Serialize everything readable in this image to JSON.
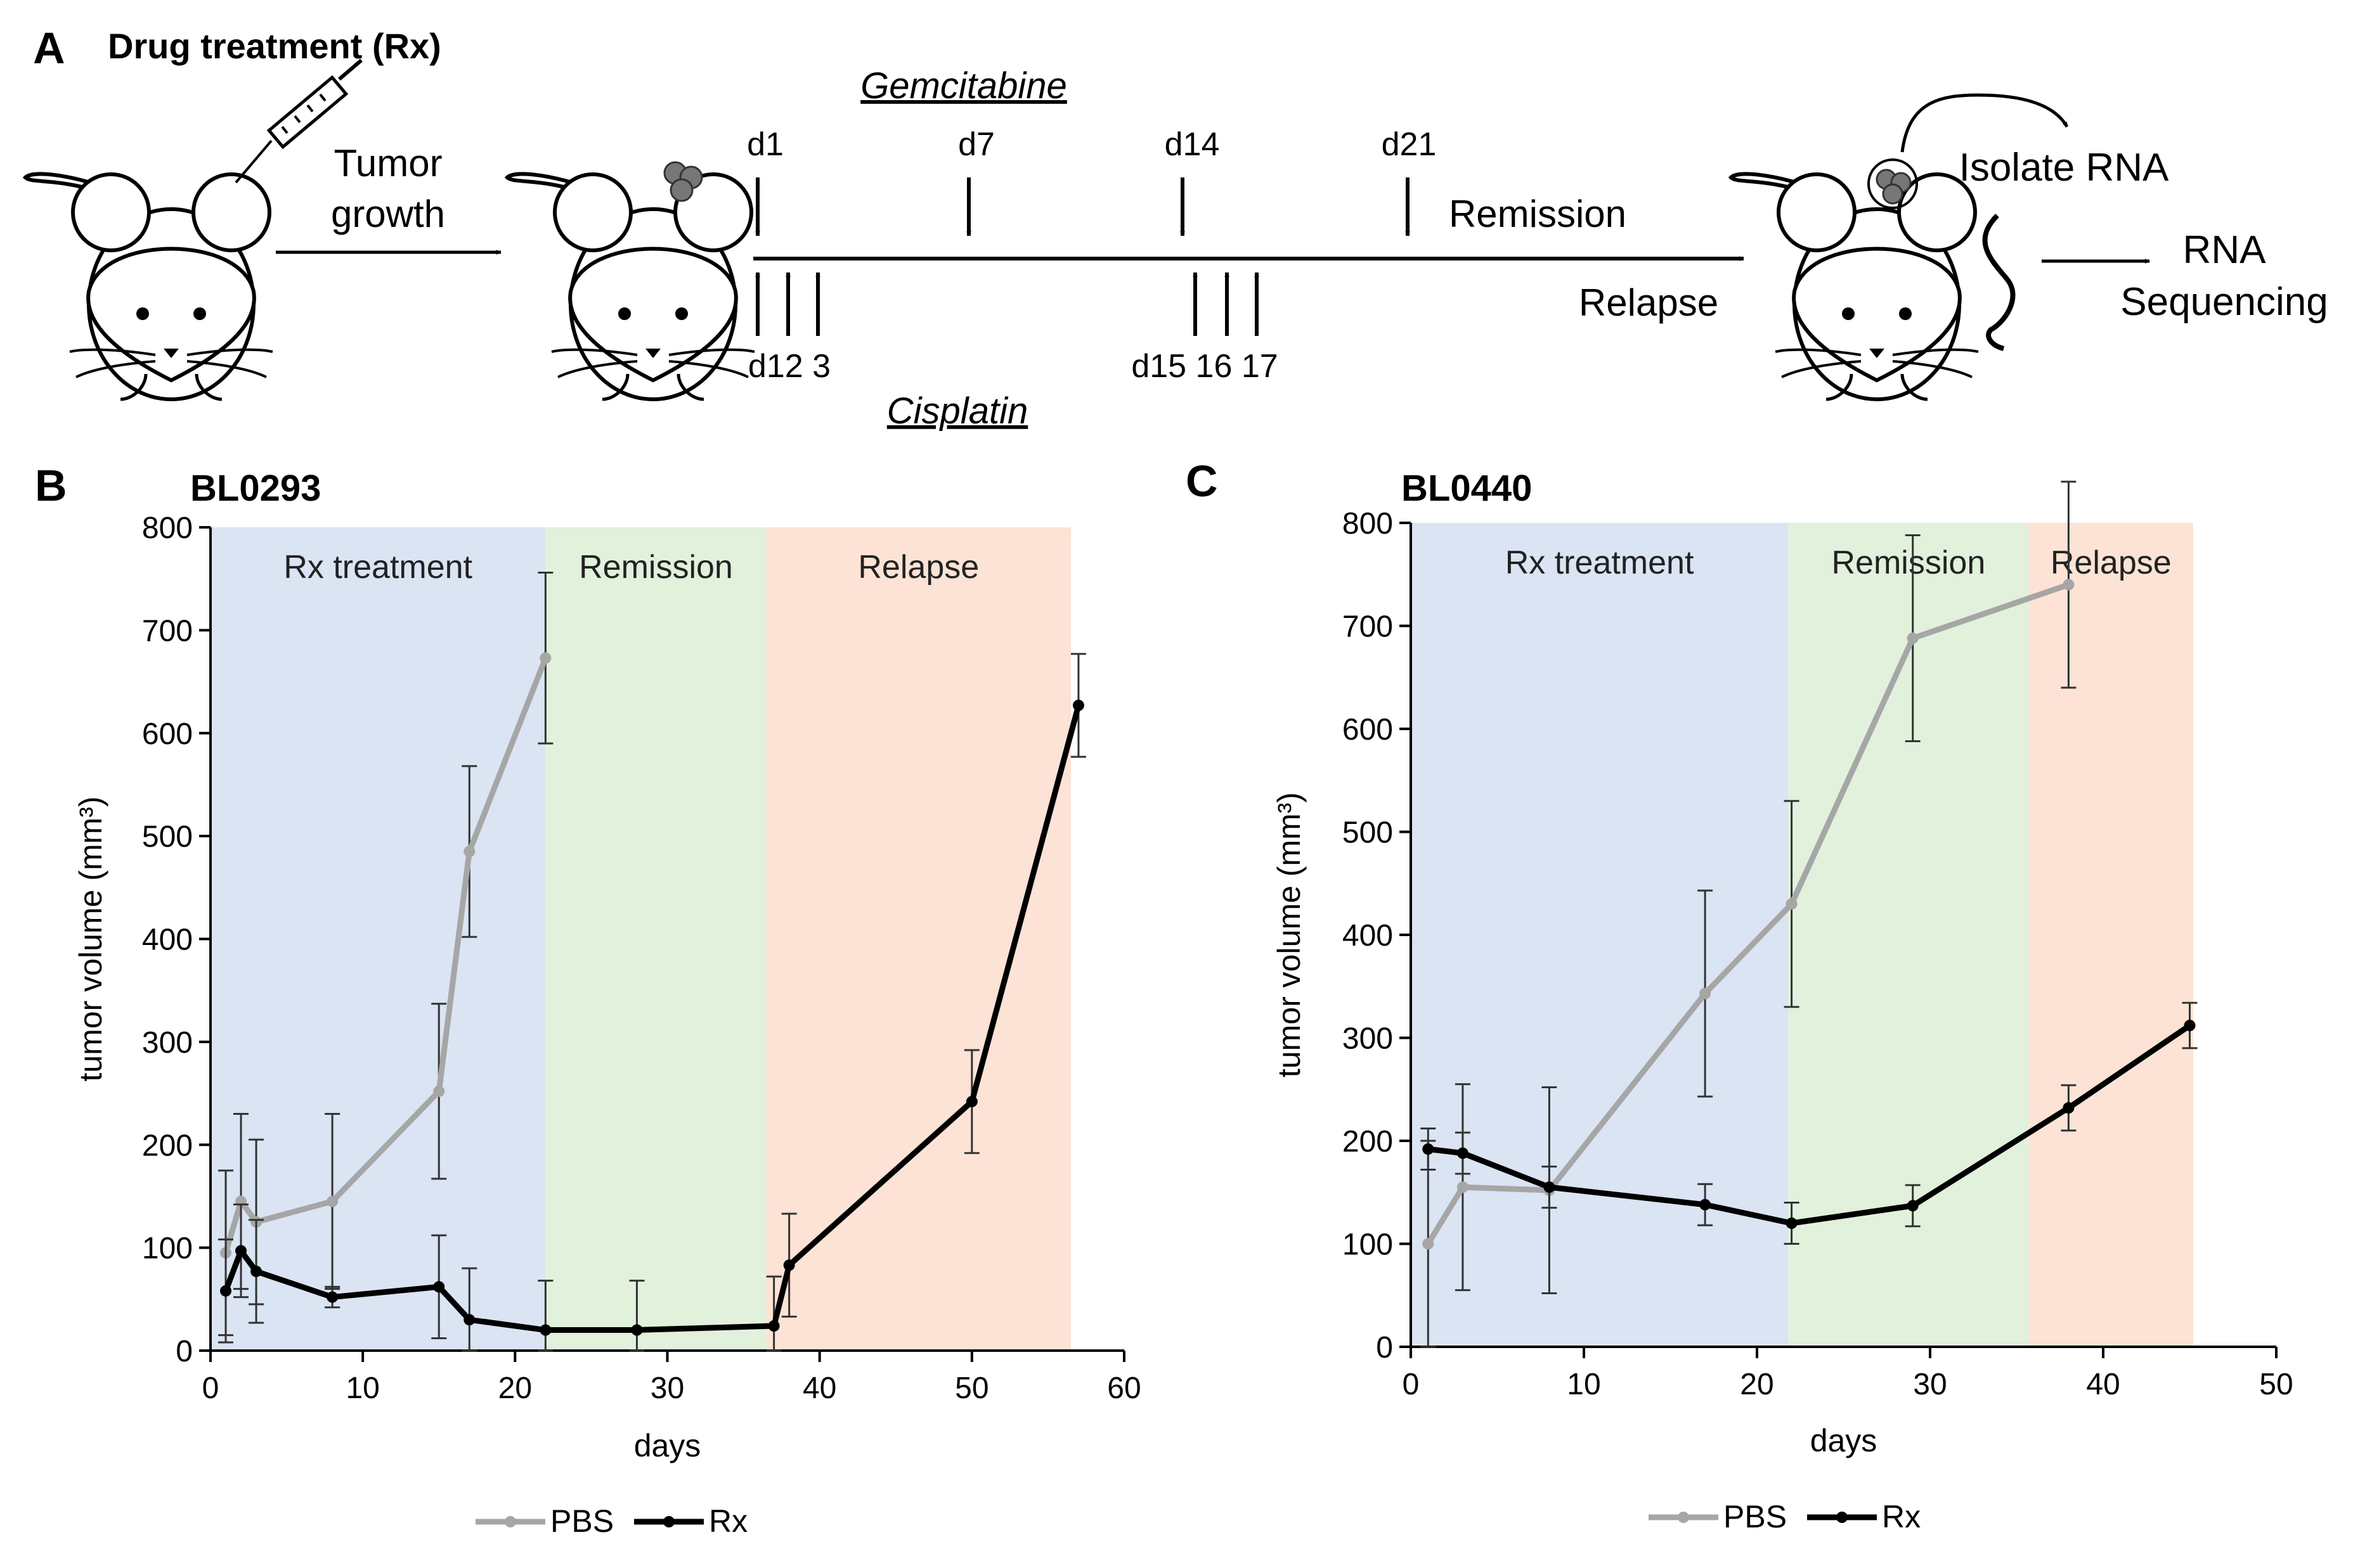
{
  "panel_a": {
    "letter": "A",
    "title": "Drug treatment (Rx)",
    "tumor_growth_line1": "Tumor",
    "tumor_growth_line2": "growth",
    "gemcitabine": "Gemcitabine",
    "cisplatin": "Cisplatin",
    "gem_days": [
      "d1",
      "d7",
      "d14",
      "d21"
    ],
    "cis_label_left": "d12 3",
    "cis_label_right": "d15 16 17",
    "remission": "Remission",
    "relapse": "Relapse",
    "isolate_rna": "Isolate RNA",
    "rna": "RNA",
    "sequencing": "Sequencing"
  },
  "chart_data": [
    {
      "panel": "B",
      "title": "BL0293",
      "type": "line",
      "xlabel": "days",
      "ylabel": "tumor volume (mm³)",
      "xlim": [
        0,
        60
      ],
      "ylim": [
        0,
        800
      ],
      "xticks": [
        0,
        10,
        20,
        30,
        40,
        50,
        60
      ],
      "yticks": [
        0,
        100,
        200,
        300,
        400,
        500,
        600,
        700,
        800
      ],
      "phases": [
        {
          "name": "Rx treatment",
          "start": 0,
          "end": 22,
          "color": "#dae4f3"
        },
        {
          "name": "Remission",
          "start": 22,
          "end": 36.5,
          "color": "#e1f1dc"
        },
        {
          "name": "Relapse",
          "start": 36.5,
          "end": 56.5,
          "color": "#fce3d5"
        }
      ],
      "series": [
        {
          "name": "PBS",
          "color": "#a6a6a6",
          "x": [
            1,
            2,
            3,
            8,
            15,
            17,
            22
          ],
          "y": [
            95,
            145,
            125,
            145,
            252,
            485,
            673
          ],
          "err": [
            80,
            85,
            80,
            85,
            85,
            83,
            83
          ]
        },
        {
          "name": "Rx",
          "color": "#000000",
          "x": [
            1,
            2,
            3,
            8,
            15,
            17,
            22,
            28,
            37,
            38,
            50,
            57
          ],
          "y": [
            58,
            97,
            77,
            52,
            62,
            30,
            20,
            20,
            24,
            83,
            242,
            627
          ],
          "err": [
            50,
            45,
            50,
            10,
            50,
            50,
            48,
            48,
            48,
            50,
            50,
            50
          ]
        }
      ],
      "legend": [
        "PBS",
        "Rx"
      ]
    },
    {
      "panel": "C",
      "title": "BL0440",
      "type": "line",
      "xlabel": "days",
      "ylabel": "tumor volume (mm³)",
      "xlim": [
        0,
        50
      ],
      "ylim": [
        0,
        800
      ],
      "xticks": [
        0,
        10,
        20,
        30,
        40,
        50
      ],
      "yticks": [
        0,
        100,
        200,
        300,
        400,
        500,
        600,
        700,
        800
      ],
      "phases": [
        {
          "name": "Rx treatment",
          "start": 0,
          "end": 21.8,
          "color": "#dae4f3"
        },
        {
          "name": "Remission",
          "start": 21.8,
          "end": 35.7,
          "color": "#e1f1dc"
        },
        {
          "name": "Relapse",
          "start": 35.7,
          "end": 45.2,
          "color": "#fce3d5"
        }
      ],
      "series": [
        {
          "name": "PBS",
          "color": "#a6a6a6",
          "x": [
            1,
            3,
            8,
            17,
            22,
            29,
            38
          ],
          "y": [
            100,
            155,
            152,
            343,
            430,
            688,
            740
          ],
          "err": [
            100,
            100,
            100,
            100,
            100,
            100,
            100
          ]
        },
        {
          "name": "Rx",
          "color": "#000000",
          "x": [
            1,
            3,
            8,
            17,
            22,
            29,
            38,
            45
          ],
          "y": [
            192,
            188,
            155,
            138,
            120,
            137,
            232,
            312
          ],
          "err": [
            20,
            20,
            20,
            20,
            20,
            20,
            22,
            22
          ]
        }
      ],
      "legend": [
        "PBS",
        "Rx"
      ]
    }
  ]
}
